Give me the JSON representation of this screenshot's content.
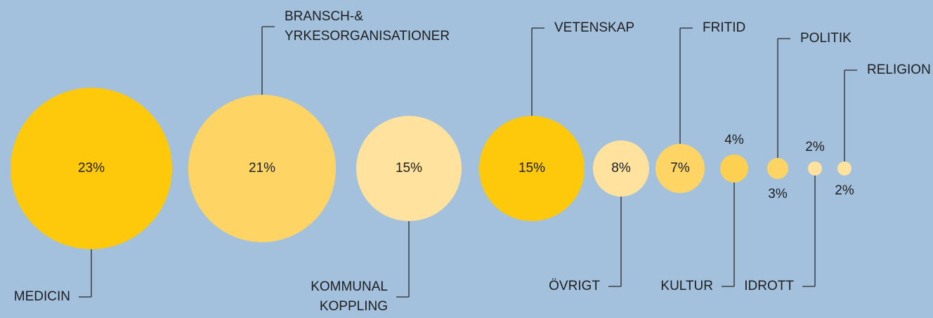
{
  "chart_data": {
    "type": "bubble",
    "categories": [
      [
        "MEDICIN"
      ],
      [
        "BRANSCH-&",
        "YRKESORGANISATIONER"
      ],
      [
        "KOMMUNAL",
        "KOPPLING"
      ],
      [
        "VETENSKAP"
      ],
      [
        "ÖVRIGT"
      ],
      [
        "FRITID"
      ],
      [
        "KULTUR"
      ],
      [
        "POLITIK"
      ],
      [
        "IDROTT"
      ],
      [
        "RELIGION"
      ]
    ],
    "values": [
      23,
      21,
      15,
      15,
      8,
      7,
      4,
      3,
      2,
      2
    ],
    "value_labels": [
      "23%",
      "21%",
      "15%",
      "15%",
      "8%",
      "7%",
      "4%",
      "3%",
      "2%",
      "2%"
    ],
    "colors": [
      "#fec80b",
      "#fed565",
      "#fee29e",
      "#fec80b",
      "#fee29e",
      "#fed565",
      "#fed052",
      "#fed565",
      "#fee29e",
      "#fee29e"
    ]
  }
}
